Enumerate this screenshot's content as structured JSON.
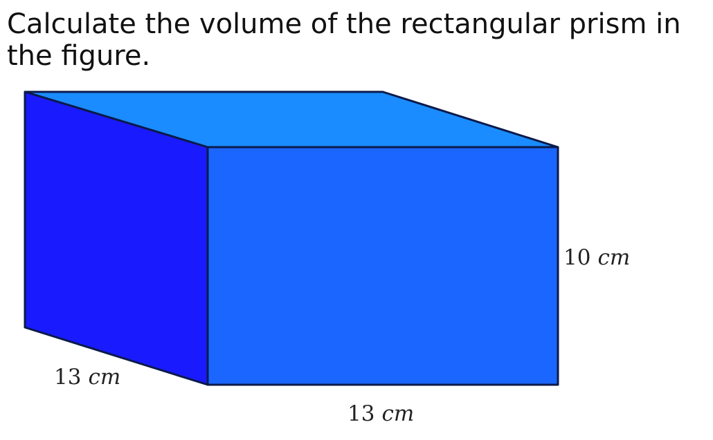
{
  "question": {
    "text": "Calculate the volume of the rectangular prism in the figure."
  },
  "prism": {
    "colors": {
      "top_face": "#1a8cff",
      "front_face": "#1a66ff",
      "side_face": "#1a1aff",
      "edge": "#0b1a4a"
    },
    "labels": {
      "height": {
        "value": "10",
        "unit": "cm"
      },
      "depth": {
        "value": "13",
        "unit": "cm"
      },
      "width": {
        "value": "13",
        "unit": "cm"
      }
    }
  }
}
